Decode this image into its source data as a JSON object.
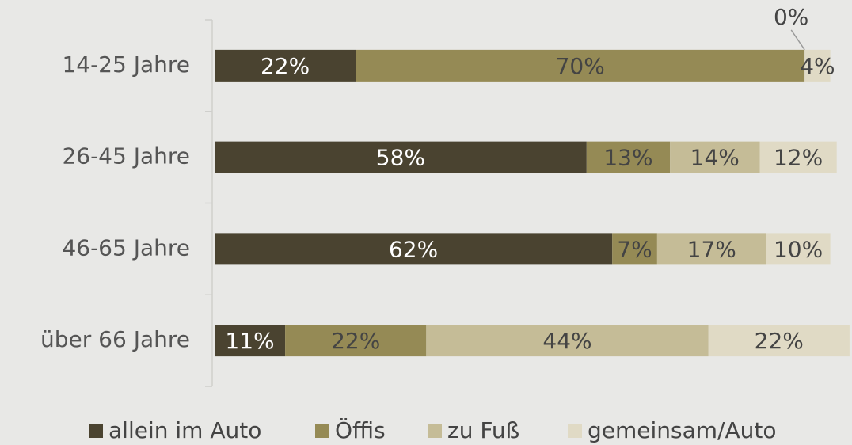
{
  "chart_data": {
    "type": "stacked-bar-horizontal",
    "categories": [
      "14-25 Jahre",
      "26-45 Jahre",
      "46-65 Jahre",
      "über 66 Jahre"
    ],
    "series": [
      {
        "name": "allein im Auto",
        "color": "#4a4330",
        "values": [
          22,
          58,
          62,
          11
        ],
        "value_labels": [
          "22%",
          "58%",
          "62%",
          "11%"
        ]
      },
      {
        "name": "Öffis",
        "color": "#958a55",
        "values": [
          70,
          13,
          7,
          22
        ],
        "value_labels": [
          "70%",
          "13%",
          "7%",
          "22%"
        ]
      },
      {
        "name": "zu Fuß",
        "color": "#c5bc97",
        "values": [
          0,
          14,
          17,
          44
        ],
        "value_labels": [
          "0%",
          "14%",
          "17%",
          "44%"
        ]
      },
      {
        "name": "gemeinsam/Auto",
        "color": "#e0dac5",
        "values": [
          4,
          12,
          10,
          22
        ],
        "value_labels": [
          "4%",
          "12%",
          "10%",
          "22%"
        ]
      }
    ],
    "legend": "bottom"
  }
}
